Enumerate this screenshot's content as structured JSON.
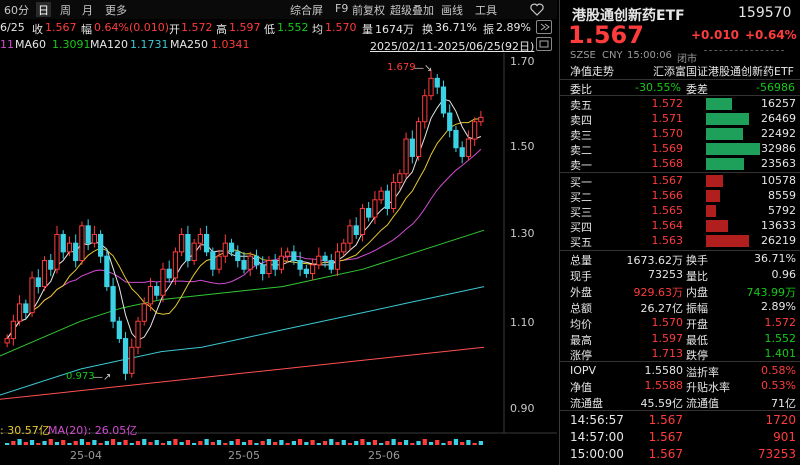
{
  "toolbar": {
    "tabs": [
      "60分",
      "日",
      "周",
      "月",
      "更多"
    ],
    "right_items": [
      "综合屏",
      "F9",
      "前复权",
      "超级叠加",
      "画线",
      "工具"
    ],
    "icon": "heart-icon"
  },
  "info_row": {
    "date": "6/25",
    "close_label": "收",
    "close": "1.567",
    "change_label": "幅",
    "change": "0.64%(0.010)",
    "open_label": "开",
    "open": "1.572",
    "high_label": "高",
    "high": "1.597",
    "low_label": "低",
    "low": "1.552",
    "avg_label": "均",
    "avg": "1.570",
    "vol_label": "量",
    "vol": "1674万",
    "turnover_label": "换",
    "turnover": "36.71%",
    "amp_label": "振",
    "amp": "2.89%"
  },
  "ma_row": {
    "ma_cut": "11",
    "ma60": "MA60",
    "ma60_val": "1.3091",
    "ma120": "MA120",
    "ma120_val": "1.1731",
    "ma250": "MA250",
    "ma250_val": "1.0341",
    "range": "2025/02/11-2025/06/25(92日)"
  },
  "chart": {
    "price_ticks": [
      "1.70",
      "1.50",
      "1.30",
      "1.10",
      "0.90"
    ],
    "high_marker": "1.679",
    "low_marker": "0.973",
    "volume_label_a": ": 30.57亿",
    "volume_label_b": "MA(20): 26.05亿",
    "x_labels": [
      "25-04",
      "25-05",
      "25-06"
    ],
    "colors": {
      "up": "#ff3c3c",
      "down": "#3cd2e6",
      "ma5": "#e6e6e6",
      "ma10": "#e6c832",
      "ma20": "#d24bd2",
      "ma60": "#32c832",
      "ma120": "#3cc8d2",
      "ma250": "#ff5050"
    }
  },
  "panel": {
    "name": "港股通创新药ETF",
    "code": "159570",
    "price": "1.567",
    "change": "+0.010",
    "change_pct": "+0.64%",
    "meta": [
      "SZSE",
      "CNY",
      "15:00:06",
      "闭市"
    ],
    "desc_label": "净值走势",
    "desc_value": "汇添富国证港股通创新药ETF",
    "webi_label": "委比",
    "webi_val": "-30.55%",
    "weicha_label": "委差",
    "weicha_val": "-56986",
    "asks": [
      {
        "label": "卖五",
        "price": "1.572",
        "vol": "16257",
        "frac": 0.49
      },
      {
        "label": "卖四",
        "price": "1.571",
        "vol": "26469",
        "frac": 0.8
      },
      {
        "label": "卖三",
        "price": "1.570",
        "vol": "22492",
        "frac": 0.68
      },
      {
        "label": "卖二",
        "price": "1.569",
        "vol": "32986",
        "frac": 1.0
      },
      {
        "label": "卖一",
        "price": "1.568",
        "vol": "23563",
        "frac": 0.71
      }
    ],
    "bids": [
      {
        "label": "买一",
        "price": "1.567",
        "vol": "10578",
        "frac": 0.32
      },
      {
        "label": "买二",
        "price": "1.566",
        "vol": "8559",
        "frac": 0.26
      },
      {
        "label": "买三",
        "price": "1.565",
        "vol": "5792",
        "frac": 0.18
      },
      {
        "label": "买四",
        "price": "1.564",
        "vol": "13633",
        "frac": 0.41
      },
      {
        "label": "买五",
        "price": "1.563",
        "vol": "26219",
        "frac": 0.79
      }
    ],
    "stats": [
      {
        "l1": "总量",
        "v1": "1673.62万",
        "c1": "white",
        "l2": "换手",
        "v2": "36.71%",
        "c2": "white"
      },
      {
        "l1": "现手",
        "v1": "73253",
        "c1": "white",
        "l2": "量比",
        "v2": "0.96",
        "c2": "white"
      },
      {
        "l1": "外盘",
        "v1": "929.63万",
        "c1": "red",
        "l2": "内盘",
        "v2": "743.99万",
        "c2": "green"
      },
      {
        "l1": "总额",
        "v1": "26.27亿",
        "c1": "white",
        "l2": "振幅",
        "v2": "2.89%",
        "c2": "white"
      },
      {
        "l1": "均价",
        "v1": "1.570",
        "c1": "red",
        "l2": "开盘",
        "v2": "1.572",
        "c2": "red"
      },
      {
        "l1": "最高",
        "v1": "1.597",
        "c1": "red",
        "l2": "最低",
        "v2": "1.552",
        "c2": "green"
      },
      {
        "l1": "涨停",
        "v1": "1.713",
        "c1": "red",
        "l2": "跌停",
        "v2": "1.401",
        "c2": "green"
      }
    ],
    "iopv": [
      {
        "l1": "IOPV",
        "v1": "1.5580",
        "c1": "white",
        "l2": "溢折率",
        "v2": "0.58%",
        "c2": "red"
      },
      {
        "l1": "净值",
        "v1": "1.5588",
        "c1": "red",
        "l2": "升贴水率",
        "v2": "0.53%",
        "c2": "red"
      },
      {
        "l1": "流通盘",
        "v1": "45.59亿",
        "c1": "white",
        "l2": "流通值",
        "v2": "71亿",
        "c2": "white"
      }
    ],
    "ticks": [
      {
        "time": "14:56:57",
        "price": "1.567",
        "vol": "1720"
      },
      {
        "time": "14:57:00",
        "price": "1.567",
        "vol": "901"
      },
      {
        "time": "15:00:00",
        "price": "1.567",
        "vol": "73253"
      }
    ]
  }
}
